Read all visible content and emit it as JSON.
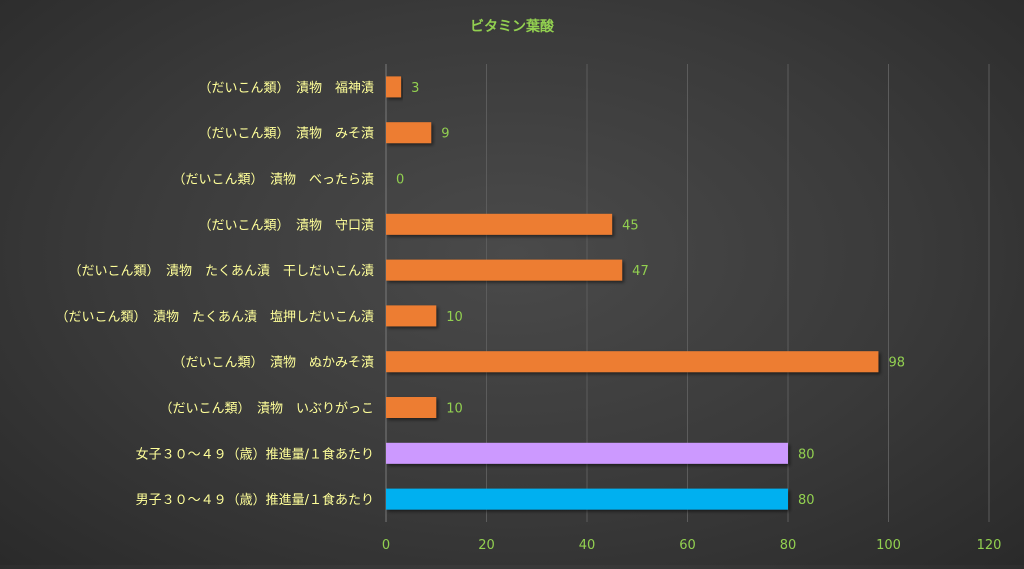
{
  "chart_data": {
    "type": "bar",
    "orientation": "horizontal",
    "title": "ビタミン葉酸",
    "categories": [
      "（だいこん類）　漬物　福神漬",
      "（だいこん類）　漬物　みそ漬",
      "（だいこん類）　漬物　べったら漬",
      "（だいこん類）　漬物　守口漬",
      "（だいこん類）　漬物　たくあん漬　干しだいこん漬",
      "（だいこん類）　漬物　たくあん漬　塩押しだいこん漬",
      "（だいこん類）　漬物　ぬかみそ漬",
      "（だいこん類）　漬物　いぶりがっこ",
      "女子３０～４９（歳）推進量/１食あたり",
      "男子３０～４９（歳）推進量/１食あたり"
    ],
    "values": [
      3,
      9,
      0,
      45,
      47,
      10,
      98,
      10,
      80,
      80
    ],
    "bar_colors": [
      "#ED7D31",
      "#ED7D31",
      "#ED7D31",
      "#ED7D31",
      "#ED7D31",
      "#ED7D31",
      "#ED7D31",
      "#ED7D31",
      "#CC99FF",
      "#00B0F0"
    ],
    "xlim": [
      0,
      120
    ],
    "xticks": [
      0,
      20,
      40,
      60,
      80,
      100,
      120
    ],
    "grid": true,
    "legend": "none",
    "colors": {
      "title": "#92D050",
      "category_label": "#FFFF99",
      "value_label": "#92D050",
      "tick_label": "#92D050",
      "gridline": "#5c5c5c",
      "axis_line": "#7a7a7a"
    }
  }
}
